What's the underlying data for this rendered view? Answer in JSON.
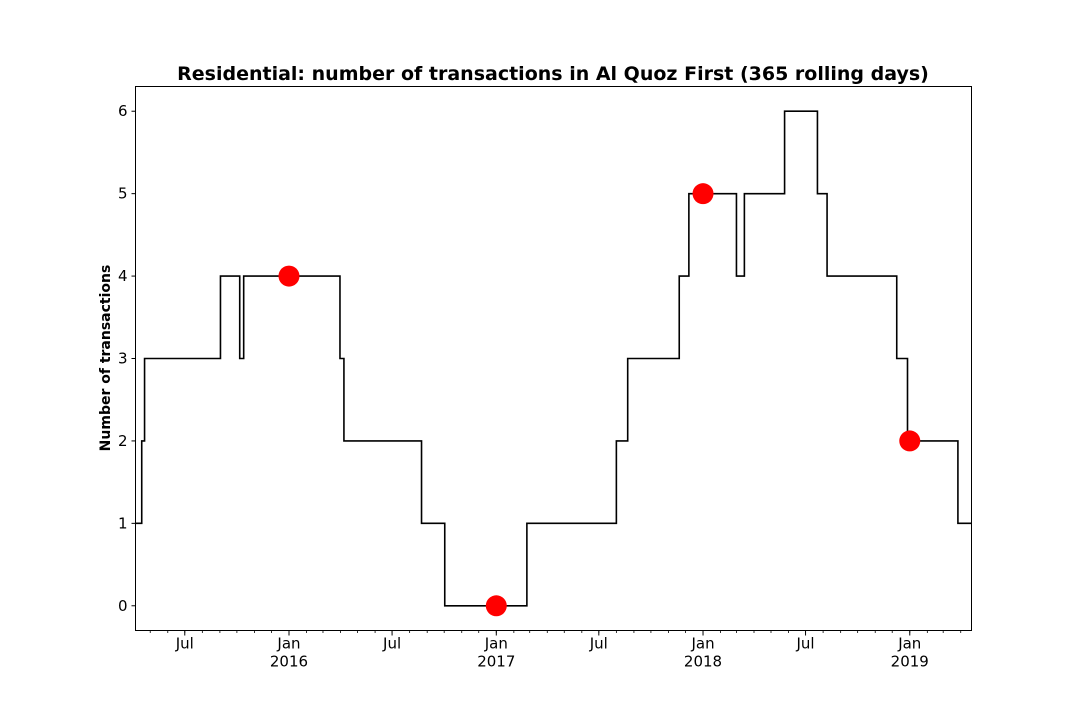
{
  "chart_data": {
    "type": "line",
    "title": "Residential: number of transactions in Al Quoz First (365 rolling days)",
    "xlabel": "",
    "ylabel": "Number of transactions",
    "ylim": [
      -0.3,
      6.3
    ],
    "xlim": [
      "2015-04-05",
      "2019-04-20"
    ],
    "yticks": [
      0,
      1,
      2,
      3,
      4,
      5,
      6
    ],
    "xticks": [
      {
        "date": "2015-07-01",
        "label": "Jul",
        "year": ""
      },
      {
        "date": "2016-01-01",
        "label": "Jan",
        "year": "2016"
      },
      {
        "date": "2016-07-01",
        "label": "Jul",
        "year": ""
      },
      {
        "date": "2017-01-01",
        "label": "Jan",
        "year": "2017"
      },
      {
        "date": "2017-07-01",
        "label": "Jul",
        "year": ""
      },
      {
        "date": "2018-01-01",
        "label": "Jan",
        "year": "2018"
      },
      {
        "date": "2018-07-01",
        "label": "Jul",
        "year": ""
      },
      {
        "date": "2019-01-01",
        "label": "Jan",
        "year": "2019"
      }
    ],
    "grid": false,
    "series": [
      {
        "color": "#000000",
        "step": true,
        "points": [
          [
            "2015-04-05",
            1
          ],
          [
            "2015-04-16",
            2
          ],
          [
            "2015-04-21",
            3
          ],
          [
            "2015-09-02",
            4
          ],
          [
            "2015-10-06",
            3
          ],
          [
            "2015-10-13",
            4
          ],
          [
            "2016-03-31",
            3
          ],
          [
            "2016-04-07",
            2
          ],
          [
            "2016-08-22",
            1
          ],
          [
            "2016-10-02",
            0
          ],
          [
            "2017-02-24",
            1
          ],
          [
            "2017-08-01",
            2
          ],
          [
            "2017-08-21",
            3
          ],
          [
            "2017-11-20",
            4
          ],
          [
            "2017-12-07",
            5
          ],
          [
            "2018-03-01",
            4
          ],
          [
            "2018-03-15",
            5
          ],
          [
            "2018-05-25",
            6
          ],
          [
            "2018-07-22",
            5
          ],
          [
            "2018-08-08",
            4
          ],
          [
            "2018-12-09",
            3
          ],
          [
            "2018-12-28",
            2
          ],
          [
            "2019-03-27",
            1
          ],
          [
            "2019-04-20",
            1
          ]
        ]
      }
    ],
    "markers": {
      "color": "#ff0000",
      "points": [
        [
          "2016-01-01",
          4
        ],
        [
          "2017-01-01",
          0
        ],
        [
          "2018-01-01",
          5
        ],
        [
          "2019-01-01",
          2
        ]
      ]
    }
  }
}
